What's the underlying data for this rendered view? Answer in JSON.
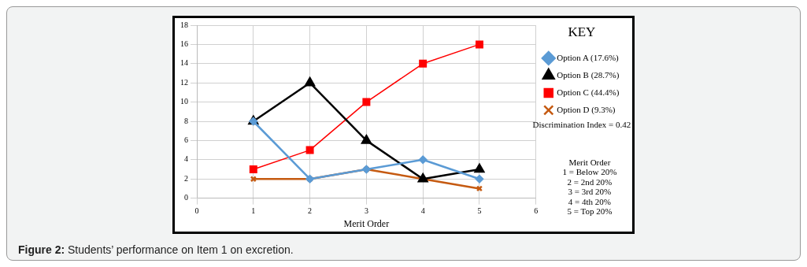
{
  "chart_data": {
    "type": "line",
    "xlabel": "Merit Order",
    "legend_title": "KEY",
    "x": [
      1,
      2,
      3,
      4,
      5
    ],
    "series": [
      {
        "name": "Option A (17.6%)",
        "color": "#5b9bd5",
        "marker": "diamond",
        "values": [
          8,
          2,
          3,
          4,
          2
        ]
      },
      {
        "name": "Option B (28.7%)",
        "color": "#000000",
        "marker": "triangle",
        "values": [
          8,
          12,
          6,
          2,
          3
        ]
      },
      {
        "name": "Option C (44.4%)",
        "color": "#ff0000",
        "marker": "square",
        "values": [
          3,
          5,
          10,
          14,
          16
        ]
      },
      {
        "name": "Option D (9.3%)",
        "color": "#c55a11",
        "marker": "cross",
        "values": [
          2,
          2,
          3,
          2,
          1
        ]
      }
    ],
    "xlim": [
      0,
      6
    ],
    "xticks": [
      0,
      1,
      2,
      3,
      4,
      5,
      6
    ],
    "ylim": [
      0,
      18
    ],
    "yticks": [
      0,
      2,
      4,
      6,
      8,
      10,
      12,
      14,
      16,
      18
    ],
    "grid": true,
    "legend": "right",
    "line_style": "solid",
    "annotations": [
      "Discrimination Index = 0.42",
      "Merit Order",
      "1 = Below 20%",
      "2 = 2nd 20%",
      "3 = 3rd 20%",
      "4 = 4th 20%",
      "5 = Top 20%",
      "Figure 2: Students’ performance on Item 1 on excretion."
    ]
  }
}
